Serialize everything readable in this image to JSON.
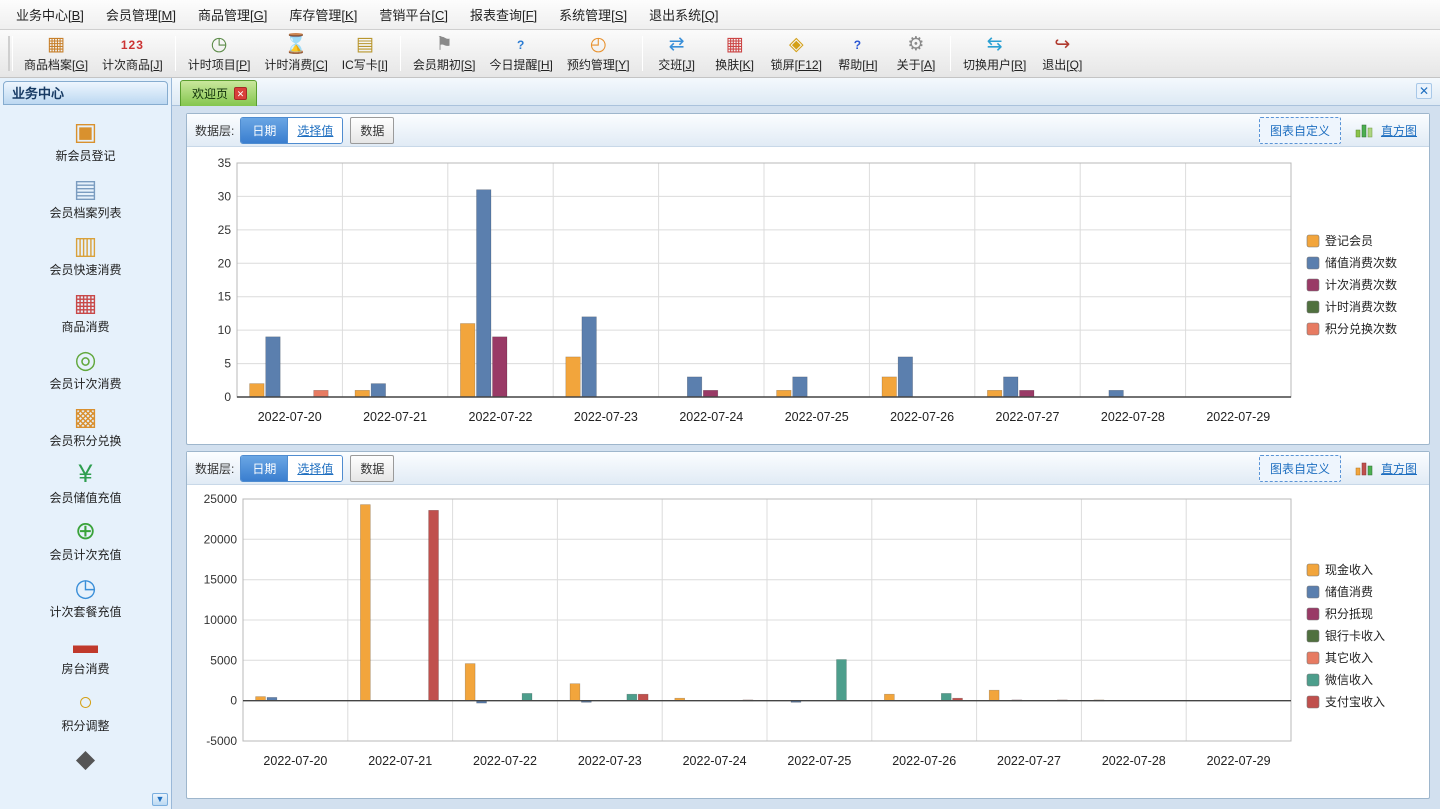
{
  "menu": {
    "items": [
      {
        "label": "业务中心[B]"
      },
      {
        "label": "会员管理[M]"
      },
      {
        "label": "商品管理[G]"
      },
      {
        "label": "库存管理[K]"
      },
      {
        "label": "营销平台[C]"
      },
      {
        "label": "报表查询[F]"
      },
      {
        "label": "系统管理[S]"
      },
      {
        "label": "退出系统[Q]"
      }
    ]
  },
  "toolbar": {
    "items": [
      {
        "label": "商品档案[G]",
        "icon": "product-archive-icon",
        "glyph": "▦",
        "color": "#c77f2a",
        "sep_before": false
      },
      {
        "label": "计次商品[J]",
        "icon": "count-product-icon",
        "glyph": "123",
        "color": "#cc3333",
        "sep_before": false,
        "small": true
      },
      {
        "label": "计时项目[P]",
        "icon": "timer-project-icon",
        "glyph": "◷",
        "color": "#5a8a46",
        "sep_before": true
      },
      {
        "label": "计时消费[C]",
        "icon": "timed-consume-icon",
        "glyph": "⌛",
        "color": "#c9a227",
        "sep_before": false
      },
      {
        "label": "IC写卡[I]",
        "icon": "ic-card-write-icon",
        "glyph": "▤",
        "color": "#b8962e",
        "sep_before": false
      },
      {
        "label": "会员期初[S]",
        "icon": "member-opening-icon",
        "glyph": "⚑",
        "color": "#8a8a8a",
        "sep_before": true
      },
      {
        "label": "今日提醒[H]",
        "icon": "today-reminder-icon",
        "glyph": "?",
        "color": "#2b7cd3",
        "sep_before": false,
        "small": true
      },
      {
        "label": "预约管理[Y]",
        "icon": "appointment-icon",
        "glyph": "◴",
        "color": "#e8912d",
        "sep_before": false
      },
      {
        "label": "交班[J]",
        "icon": "shift-change-icon",
        "glyph": "⇄",
        "color": "#3a8fd8",
        "sep_before": true
      },
      {
        "label": "换肤[K]",
        "icon": "skin-change-icon",
        "glyph": "▦",
        "color": "#cc4444",
        "sep_before": false
      },
      {
        "label": "锁屏[F12]",
        "icon": "lock-screen-icon",
        "glyph": "◈",
        "color": "#d4a017",
        "sep_before": false
      },
      {
        "label": "帮助[H]",
        "icon": "help-icon",
        "glyph": "?",
        "color": "#2b57d3",
        "sep_before": false,
        "small": true
      },
      {
        "label": "关于[A]",
        "icon": "about-icon",
        "glyph": "⚙",
        "color": "#8a8a8a",
        "sep_before": false
      },
      {
        "label": "切换用户[R]",
        "icon": "switch-user-icon",
        "glyph": "⇆",
        "color": "#2ba0d3",
        "sep_before": true
      },
      {
        "label": "退出[Q]",
        "icon": "exit-icon",
        "glyph": "↪",
        "color": "#b03a2e",
        "sep_before": false
      }
    ]
  },
  "sidebar": {
    "title": "业务中心",
    "items": [
      {
        "label": "新会员登记",
        "icon": "new-member-icon",
        "glyph": "▣",
        "color": "#d9912e"
      },
      {
        "label": "会员档案列表",
        "icon": "member-archive-list-icon",
        "glyph": "▤",
        "color": "#7a9cc0"
      },
      {
        "label": "会员快速消费",
        "icon": "member-quick-consume-icon",
        "glyph": "▥",
        "color": "#d9a13a"
      },
      {
        "label": "商品消费",
        "icon": "product-consume-icon",
        "glyph": "▦",
        "color": "#c84848"
      },
      {
        "label": "会员计次消费",
        "icon": "member-count-consume-icon",
        "glyph": "◎",
        "color": "#62a83e"
      },
      {
        "label": "会员积分兑换",
        "icon": "member-points-exchange-icon",
        "glyph": "▩",
        "color": "#d98f2e"
      },
      {
        "label": "会员储值充值",
        "icon": "member-stored-value-recharge-icon",
        "glyph": "¥",
        "color": "#2e9e4f"
      },
      {
        "label": "会员计次充值",
        "icon": "member-count-recharge-icon",
        "glyph": "⊕",
        "color": "#3aa33a"
      },
      {
        "label": "计次套餐充值",
        "icon": "count-package-recharge-icon",
        "glyph": "◷",
        "color": "#3a8fd8"
      },
      {
        "label": "房台消费",
        "icon": "room-table-consume-icon",
        "glyph": "▬",
        "color": "#c0392b"
      },
      {
        "label": "积分调整",
        "icon": "points-adjust-icon",
        "glyph": "○",
        "color": "#d4a017"
      },
      {
        "label": "",
        "icon": "partial-item-icon",
        "glyph": "◆",
        "color": "#555555"
      }
    ]
  },
  "tabs": {
    "active_label": "欢迎页"
  },
  "panels": [
    {
      "data_layer_label": "数据层:",
      "btn_date": "日期",
      "btn_select": "选择值",
      "btn_data": "数据",
      "btn_customize": "图表自定义",
      "btn_histogram": "直方图"
    },
    {
      "data_layer_label": "数据层:",
      "btn_date": "日期",
      "btn_select": "选择值",
      "btn_data": "数据",
      "btn_customize": "图表自定义",
      "btn_histogram": "直方图"
    }
  ],
  "chart_data": [
    {
      "type": "bar",
      "title": "",
      "categories": [
        "2022-07-20",
        "2022-07-21",
        "2022-07-22",
        "2022-07-23",
        "2022-07-24",
        "2022-07-25",
        "2022-07-26",
        "2022-07-27",
        "2022-07-28",
        "2022-07-29"
      ],
      "series": [
        {
          "name": "登记会员",
          "color": "#f2a53c",
          "values": [
            2,
            1,
            11,
            6,
            0,
            1,
            3,
            1,
            0,
            0
          ]
        },
        {
          "name": "储值消费次数",
          "color": "#5b7fae",
          "values": [
            9,
            2,
            31,
            12,
            3,
            3,
            6,
            3,
            1,
            0
          ]
        },
        {
          "name": "计次消费次数",
          "color": "#993a66",
          "values": [
            0,
            0,
            9,
            0,
            1,
            0,
            0,
            1,
            0,
            0
          ]
        },
        {
          "name": "计时消费次数",
          "color": "#50703f",
          "values": [
            0,
            0,
            0,
            0,
            0,
            0,
            0,
            0,
            0,
            0
          ]
        },
        {
          "name": "积分兑换次数",
          "color": "#e77b62",
          "values": [
            1,
            0,
            0,
            0,
            0,
            0,
            0,
            0,
            0,
            0
          ]
        }
      ],
      "ylim": [
        0,
        35
      ],
      "ytick": 5,
      "grid": true,
      "legend_position": "right"
    },
    {
      "type": "bar",
      "title": "",
      "categories": [
        "2022-07-20",
        "2022-07-21",
        "2022-07-22",
        "2022-07-23",
        "2022-07-24",
        "2022-07-25",
        "2022-07-26",
        "2022-07-27",
        "2022-07-28",
        "2022-07-29"
      ],
      "series": [
        {
          "name": "现金收入",
          "color": "#f2a53c",
          "values": [
            500,
            24300,
            4600,
            2100,
            300,
            0,
            800,
            1300,
            100,
            0
          ]
        },
        {
          "name": "储值消费",
          "color": "#5b7fae",
          "values": [
            400,
            0,
            -300,
            -200,
            0,
            -200,
            0,
            0,
            0,
            0
          ]
        },
        {
          "name": "积分抵现",
          "color": "#993a66",
          "values": [
            0,
            0,
            0,
            0,
            0,
            0,
            0,
            100,
            0,
            0
          ]
        },
        {
          "name": "银行卡收入",
          "color": "#50703f",
          "values": [
            0,
            0,
            0,
            0,
            0,
            0,
            0,
            0,
            0,
            0
          ]
        },
        {
          "name": "其它收入",
          "color": "#e77b62",
          "values": [
            0,
            0,
            0,
            0,
            0,
            0,
            0,
            0,
            0,
            0
          ]
        },
        {
          "name": "微信收入",
          "color": "#4d9e8c",
          "values": [
            0,
            0,
            900,
            800,
            0,
            5100,
            900,
            0,
            0,
            0
          ]
        },
        {
          "name": "支付宝收入",
          "color": "#c0504d",
          "values": [
            0,
            23600,
            0,
            800,
            100,
            0,
            300,
            100,
            0,
            0
          ]
        }
      ],
      "ylim": [
        -5000,
        25000
      ],
      "ytick": 5000,
      "grid": true,
      "legend_position": "right"
    }
  ]
}
